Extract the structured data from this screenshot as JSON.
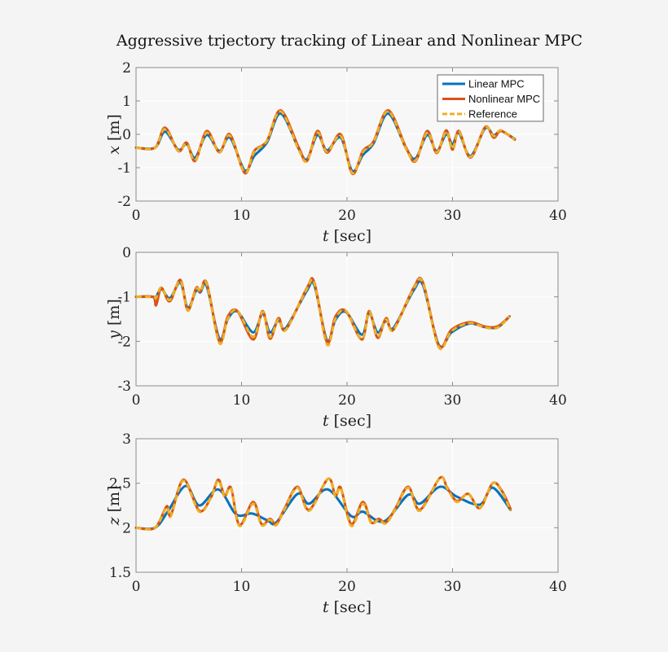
{
  "colors": {
    "linear": "#0072BD",
    "nonlinear": "#D95319",
    "reference": "#EDB120",
    "background": "#f4f4f4",
    "axes": "#f7f7f7",
    "grid": "#ffffff"
  },
  "chart_data": [
    {
      "type": "line",
      "title": "Aggressive trjectory tracking of Linear and Nonlinear MPC",
      "xlabel_var": "t",
      "xlabel_unit": "[sec]",
      "ylabel_var": "x",
      "ylabel_unit": "[m]",
      "xlim": [
        0,
        40
      ],
      "ylim": [
        -2,
        2
      ],
      "xticks": [
        "0",
        "10",
        "20",
        "30",
        "40"
      ],
      "xtick_values": [
        0,
        10,
        20,
        30,
        40
      ],
      "yticks": [
        "2",
        "1",
        "0",
        "-1",
        "-2"
      ],
      "ytick_values": [
        2,
        1,
        0,
        -1,
        -2
      ],
      "grid": true,
      "legend": "top-right",
      "legend_entries": [
        "Linear MPC",
        "Nonlinear MPC",
        "Reference"
      ],
      "series": [
        {
          "name": "Linear MPC",
          "style": "solid",
          "x": [
            0,
            1.8,
            2.75,
            4.0,
            4.8,
            5.6,
            6.7,
            7.9,
            8.9,
            10.3,
            11.2,
            12.4,
            13.7,
            15.4,
            16.2,
            17.2,
            18.1,
            19.4,
            20.5,
            21.5,
            22.5,
            23.9,
            25.6,
            26.5,
            27.6,
            28.5,
            29.4,
            30.0,
            30.6,
            31.7,
            33.1,
            33.9,
            34.6,
            35.9
          ],
          "y": [
            -0.4,
            -0.4,
            0.08,
            -0.46,
            -0.3,
            -0.7,
            -0.02,
            -0.5,
            -0.1,
            -1.08,
            -0.65,
            -0.25,
            0.62,
            -0.42,
            -0.75,
            -0.02,
            -0.48,
            -0.1,
            -1.1,
            -0.62,
            -0.28,
            0.62,
            -0.42,
            -0.72,
            -0.02,
            -0.5,
            0.0,
            -0.3,
            0.04,
            -0.65,
            0.18,
            -0.03,
            0.1,
            -0.14
          ]
        },
        {
          "name": "Nonlinear MPC",
          "style": "solid",
          "x": [
            0,
            1.8,
            2.75,
            4.0,
            4.8,
            5.6,
            6.7,
            7.9,
            8.9,
            10.3,
            11.2,
            12.4,
            13.7,
            15.4,
            16.2,
            17.2,
            18.1,
            19.4,
            20.5,
            21.5,
            22.5,
            23.9,
            25.6,
            26.5,
            27.6,
            28.5,
            29.4,
            30.0,
            30.6,
            31.7,
            33.1,
            33.9,
            34.6,
            35.9
          ],
          "y": [
            -0.4,
            -0.4,
            0.2,
            -0.5,
            -0.25,
            -0.8,
            0.1,
            -0.54,
            0.0,
            -1.16,
            -0.5,
            -0.2,
            0.72,
            -0.38,
            -0.8,
            0.1,
            -0.55,
            0.0,
            -1.18,
            -0.5,
            -0.22,
            0.72,
            -0.4,
            -0.8,
            0.1,
            -0.56,
            0.12,
            -0.46,
            0.1,
            -0.7,
            0.22,
            -0.1,
            0.1,
            -0.16
          ]
        },
        {
          "name": "Reference",
          "style": "dashed",
          "x": [
            0,
            1.8,
            2.75,
            4.0,
            4.8,
            5.6,
            6.7,
            7.9,
            8.9,
            10.3,
            11.2,
            12.4,
            13.7,
            15.4,
            16.2,
            17.2,
            18.1,
            19.4,
            20.5,
            21.5,
            22.5,
            23.9,
            25.6,
            26.5,
            27.6,
            28.5,
            29.4,
            30.0,
            30.6,
            31.7,
            33.1,
            33.9,
            34.6,
            35.9
          ],
          "y": [
            -0.4,
            -0.4,
            0.16,
            -0.49,
            -0.28,
            -0.78,
            0.05,
            -0.53,
            -0.04,
            -1.14,
            -0.53,
            -0.2,
            0.69,
            -0.45,
            -0.8,
            0.05,
            -0.52,
            -0.05,
            -1.16,
            -0.53,
            -0.24,
            0.69,
            -0.44,
            -0.78,
            0.05,
            -0.54,
            0.08,
            -0.44,
            0.08,
            -0.68,
            0.2,
            -0.05,
            0.12,
            -0.16
          ]
        }
      ]
    },
    {
      "type": "line",
      "xlabel_var": "t",
      "xlabel_unit": "[sec]",
      "ylabel_var": "y",
      "ylabel_unit": "[m]",
      "xlim": [
        0,
        40
      ],
      "ylim": [
        -3,
        0
      ],
      "xticks": [
        "0",
        "10",
        "20",
        "30",
        "40"
      ],
      "xtick_values": [
        0,
        10,
        20,
        30,
        40
      ],
      "yticks": [
        "0",
        "-1",
        "-2",
        "-3"
      ],
      "ytick_values": [
        0,
        -1,
        -2,
        -3
      ],
      "grid": true,
      "series": [
        {
          "name": "Linear MPC",
          "style": "solid",
          "x": [
            0,
            1.6,
            1.9,
            2.4,
            3.2,
            4.2,
            4.9,
            5.7,
            6.1,
            6.7,
            7.9,
            8.7,
            9.6,
            11.1,
            12.0,
            12.7,
            13.5,
            14.2,
            16.2,
            16.9,
            18.1,
            18.9,
            19.9,
            21.4,
            22.1,
            22.9,
            23.7,
            24.4,
            26.3,
            27.2,
            28.7,
            29.9,
            31.6,
            33.1,
            34.3,
            35.4
          ],
          "y": [
            -1.0,
            -1.0,
            -1.0,
            -0.82,
            -1.03,
            -0.68,
            -1.25,
            -0.86,
            -0.9,
            -0.76,
            -1.94,
            -1.5,
            -1.33,
            -1.8,
            -1.38,
            -1.8,
            -1.53,
            -1.7,
            -0.86,
            -0.74,
            -1.98,
            -1.52,
            -1.34,
            -1.85,
            -1.38,
            -1.8,
            -1.53,
            -1.7,
            -0.86,
            -0.74,
            -2.08,
            -1.8,
            -1.6,
            -1.68,
            -1.68,
            -1.44
          ]
        },
        {
          "name": "Nonlinear MPC",
          "style": "solid",
          "x": [
            0,
            1.6,
            1.9,
            2.4,
            3.2,
            4.2,
            4.9,
            5.7,
            6.1,
            6.7,
            7.9,
            8.7,
            9.6,
            11.1,
            12.0,
            12.7,
            13.5,
            14.2,
            16.2,
            16.9,
            18.1,
            18.9,
            19.9,
            21.4,
            22.1,
            22.9,
            23.7,
            24.4,
            26.3,
            27.2,
            28.7,
            29.9,
            31.6,
            33.1,
            34.3,
            35.4
          ],
          "y": [
            -1.0,
            -1.0,
            -1.19,
            -0.8,
            -1.1,
            -0.62,
            -1.3,
            -0.8,
            -0.88,
            -0.69,
            -2.0,
            -1.44,
            -1.32,
            -1.96,
            -1.32,
            -1.94,
            -1.48,
            -1.74,
            -0.8,
            -0.68,
            -2.02,
            -1.44,
            -1.32,
            -1.96,
            -1.32,
            -1.92,
            -1.48,
            -1.74,
            -0.8,
            -0.68,
            -2.1,
            -1.74,
            -1.57,
            -1.67,
            -1.66,
            -1.44
          ]
        },
        {
          "name": "Reference",
          "style": "dashed",
          "x": [
            0,
            1.6,
            1.9,
            2.4,
            3.2,
            4.2,
            4.9,
            5.7,
            6.1,
            6.7,
            7.9,
            8.7,
            9.6,
            11.1,
            12.0,
            12.7,
            13.5,
            14.2,
            16.2,
            16.9,
            18.1,
            18.9,
            19.9,
            21.4,
            22.1,
            22.9,
            23.7,
            24.4,
            26.3,
            27.2,
            28.7,
            29.9,
            31.6,
            33.1,
            34.3,
            35.4
          ],
          "y": [
            -1.0,
            -1.0,
            -1.02,
            -0.79,
            -1.07,
            -0.64,
            -1.31,
            -0.82,
            -0.88,
            -0.71,
            -2.04,
            -1.49,
            -1.31,
            -1.9,
            -1.34,
            -1.9,
            -1.51,
            -1.74,
            -0.82,
            -0.7,
            -2.07,
            -1.49,
            -1.32,
            -1.95,
            -1.34,
            -1.89,
            -1.51,
            -1.74,
            -0.82,
            -0.7,
            -2.13,
            -1.77,
            -1.59,
            -1.69,
            -1.69,
            -1.44
          ]
        }
      ]
    },
    {
      "type": "line",
      "xlabel_var": "t",
      "xlabel_unit": "[sec]",
      "ylabel_var": "z",
      "ylabel_unit": "[m]",
      "xlim": [
        0,
        40
      ],
      "ylim": [
        1.5,
        3
      ],
      "xticks": [
        "0",
        "10",
        "20",
        "30",
        "40"
      ],
      "xtick_values": [
        0,
        10,
        20,
        30,
        40
      ],
      "yticks": [
        "3",
        "2.5",
        "2",
        "1.5"
      ],
      "ytick_values": [
        3,
        2.5,
        2,
        1.5
      ],
      "grid": true,
      "series": [
        {
          "name": "Linear MPC",
          "style": "solid",
          "x": [
            0,
            1.8,
            3.0,
            4.7,
            6.0,
            7.8,
            9.5,
            11.0,
            12.5,
            13.3,
            15.3,
            16.4,
            18.2,
            20.4,
            21.5,
            23.5,
            25.8,
            26.9,
            28.8,
            30.4,
            32.6,
            33.8,
            35.5
          ],
          "y": [
            2.0,
            2.0,
            2.18,
            2.47,
            2.25,
            2.43,
            2.15,
            2.16,
            2.08,
            2.06,
            2.38,
            2.27,
            2.43,
            2.13,
            2.18,
            2.07,
            2.37,
            2.27,
            2.46,
            2.35,
            2.26,
            2.45,
            2.2
          ]
        },
        {
          "name": "Nonlinear MPC",
          "style": "solid",
          "x": [
            0,
            1.8,
            2.9,
            3.3,
            4.5,
            6.0,
            7.1,
            7.8,
            8.4,
            9.0,
            9.8,
            11.1,
            11.9,
            12.7,
            13.3,
            14.1,
            15.3,
            16.4,
            18.2,
            18.9,
            19.4,
            20.4,
            21.5,
            22.3,
            23.0,
            23.7,
            24.6,
            25.8,
            26.9,
            28.8,
            29.5,
            30.4,
            31.5,
            32.6,
            33.8,
            34.7,
            35.5
          ],
          "y": [
            2.0,
            2.0,
            2.24,
            2.14,
            2.54,
            2.19,
            2.34,
            2.54,
            2.36,
            2.45,
            2.03,
            2.29,
            2.04,
            2.1,
            2.04,
            2.22,
            2.46,
            2.2,
            2.55,
            2.36,
            2.45,
            2.04,
            2.29,
            2.06,
            2.1,
            2.06,
            2.22,
            2.46,
            2.2,
            2.56,
            2.45,
            2.3,
            2.38,
            2.22,
            2.5,
            2.41,
            2.21
          ]
        },
        {
          "name": "Reference",
          "style": "dashed",
          "x": [
            0,
            1.8,
            2.9,
            3.3,
            4.5,
            6.0,
            7.1,
            7.8,
            8.4,
            9.0,
            9.8,
            11.1,
            11.9,
            12.7,
            13.3,
            14.1,
            15.3,
            16.4,
            18.2,
            18.9,
            19.4,
            20.4,
            21.5,
            22.3,
            23.0,
            23.7,
            24.6,
            25.8,
            26.9,
            28.8,
            29.5,
            30.4,
            31.5,
            32.6,
            33.8,
            34.7,
            35.5
          ],
          "y": [
            2.0,
            2.0,
            2.23,
            2.13,
            2.53,
            2.18,
            2.34,
            2.53,
            2.35,
            2.44,
            2.02,
            2.27,
            2.03,
            2.09,
            2.03,
            2.21,
            2.45,
            2.19,
            2.55,
            2.35,
            2.44,
            2.02,
            2.27,
            2.05,
            2.09,
            2.05,
            2.21,
            2.45,
            2.19,
            2.56,
            2.44,
            2.29,
            2.38,
            2.22,
            2.5,
            2.4,
            2.19
          ]
        }
      ]
    }
  ]
}
